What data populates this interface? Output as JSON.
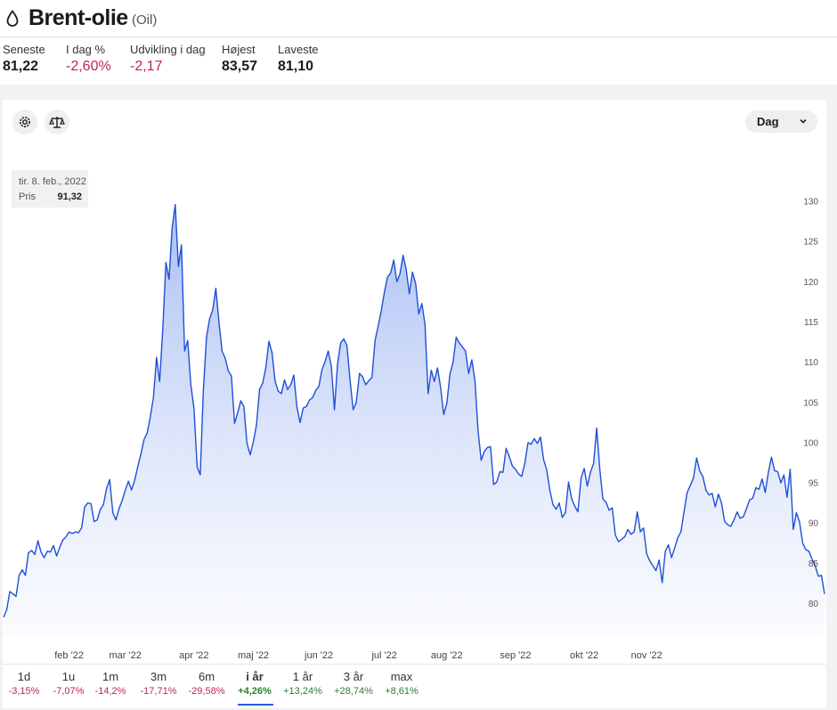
{
  "header": {
    "title": "Brent-olie",
    "subtitle": "(Oil)"
  },
  "stats": [
    {
      "label": "Seneste",
      "value": "81,22",
      "tone": "plain"
    },
    {
      "label": "I dag %",
      "value": "-2,60%",
      "tone": "neg"
    },
    {
      "label": "Udvikling i dag",
      "value": "-2,17",
      "tone": "neg"
    },
    {
      "label": "Højest",
      "value": "83,57",
      "tone": "plain"
    },
    {
      "label": "Laveste",
      "value": "81,10",
      "tone": "plain"
    }
  ],
  "controls": {
    "period": "Dag",
    "icons": [
      "settings-icon",
      "compare-icon"
    ]
  },
  "tooltip": {
    "date": "tir. 8. feb., 2022",
    "label": "Pris",
    "value": "91,32"
  },
  "colors": {
    "line": "#1f4fd8",
    "negative": "#c0225b",
    "positive": "#2e7d32"
  },
  "ranges": [
    {
      "label": "1d",
      "change": "-3,15%",
      "tone": "neg"
    },
    {
      "label": "1u",
      "change": "-7,07%",
      "tone": "neg"
    },
    {
      "label": "1m",
      "change": "-14,2%",
      "tone": "neg"
    },
    {
      "label": "3m",
      "change": "-17,71%",
      "tone": "neg"
    },
    {
      "label": "6m",
      "change": "-29,58%",
      "tone": "neg"
    },
    {
      "label": "i år",
      "change": "+4,26%",
      "tone": "pos",
      "active": true
    },
    {
      "label": "1 år",
      "change": "+13,24%",
      "tone": "pos"
    },
    {
      "label": "3 år",
      "change": "+28,74%",
      "tone": "pos"
    },
    {
      "label": "max",
      "change": "+8,61%",
      "tone": "pos"
    }
  ],
  "chart_data": {
    "type": "area",
    "title": "",
    "xlabel": "",
    "ylabel": "",
    "ylim": [
      76,
      131
    ],
    "yticks": [
      80,
      85,
      90,
      95,
      100,
      105,
      110,
      115,
      120,
      125,
      130
    ],
    "xticks": [
      "feb '22",
      "mar '22",
      "apr '22",
      "maj '22",
      "jun '22",
      "jul '22",
      "aug '22",
      "sep '22",
      "okt '22",
      "nov '22"
    ],
    "grid": false,
    "legend": "none",
    "series": [
      {
        "values": [
          78.3,
          79.2,
          81.5,
          81.2,
          80.9,
          83.5,
          84.2,
          83.5,
          86.3,
          86.6,
          86.1,
          87.8,
          86.4,
          85.7,
          86.5,
          86.4,
          87.2,
          85.9,
          87.0,
          87.9,
          88.3,
          88.9,
          88.7,
          88.9,
          88.8,
          89.4,
          92.0,
          92.5,
          92.4,
          90.2,
          90.4,
          91.7,
          92.3,
          94.3,
          95.4,
          91.3,
          90.4,
          91.8,
          92.8,
          94.1,
          95.2,
          94.1,
          95.3,
          97.0,
          98.6,
          100.4,
          101.2,
          103.2,
          105.6,
          110.6,
          107.6,
          114.1,
          122.4,
          120.3,
          126.7,
          129.6,
          121.9,
          124.6,
          111.4,
          112.7,
          107.2,
          104.3,
          97.0,
          96.0,
          106.6,
          113.1,
          115.4,
          116.5,
          119.2,
          115.0,
          111.4,
          110.5,
          108.9,
          108.3,
          102.4,
          103.7,
          105.2,
          104.5,
          99.9,
          98.5,
          100.1,
          102.2,
          106.6,
          107.4,
          109.3,
          112.6,
          111.2,
          107.6,
          106.4,
          106.1,
          107.8,
          106.6,
          107.2,
          108.4,
          104.4,
          102.5,
          104.3,
          104.5,
          105.3,
          105.6,
          106.5,
          107.0,
          109.1,
          110.1,
          111.4,
          109.5,
          104.1,
          109.8,
          112.4,
          112.9,
          112.1,
          107.8,
          104.1,
          105.0,
          108.6,
          108.2,
          107.2,
          107.7,
          108.1,
          112.7,
          114.5,
          116.4,
          118.7,
          120.6,
          121.1,
          122.7,
          120.0,
          121.0,
          123.3,
          121.5,
          118.5,
          121.2,
          119.8,
          116.0,
          117.3,
          114.7,
          106.1,
          109.0,
          107.6,
          109.3,
          106.9,
          103.5,
          104.9,
          108.5,
          110.0,
          113.1,
          112.4,
          111.9,
          111.4,
          108.6,
          110.3,
          107.7,
          101.5,
          97.8,
          98.9,
          99.4,
          99.5,
          94.8,
          95.1,
          96.4,
          96.3,
          99.3,
          98.3,
          97.1,
          96.7,
          96.1,
          95.8,
          97.5,
          100.0,
          99.8,
          100.5,
          99.9,
          100.7,
          97.9,
          96.6,
          94.1,
          92.3,
          91.7,
          92.5,
          90.7,
          91.3,
          95.1,
          93.0,
          92.1,
          91.4,
          95.6,
          96.8,
          94.6,
          96.3,
          97.4,
          101.8,
          96.7,
          93.0,
          92.6,
          91.6,
          91.9,
          88.5,
          87.7,
          88.0,
          88.3,
          89.2,
          88.6,
          88.9,
          91.4,
          88.9,
          89.4,
          86.2,
          85.3,
          84.7,
          84.1,
          85.4,
          82.6,
          86.5,
          87.3,
          85.7,
          86.9,
          88.2,
          88.9,
          91.4,
          93.8,
          94.7,
          95.6,
          98.1,
          96.5,
          95.8,
          94.1,
          93.5,
          93.7,
          92.0,
          93.6,
          92.5,
          90.2,
          89.8,
          89.6,
          90.4,
          91.4,
          90.6,
          90.8,
          91.8,
          92.9,
          93.1,
          94.4,
          94.2,
          95.5,
          93.8,
          96.3,
          98.2,
          96.5,
          96.4,
          95.0,
          96.0,
          93.2,
          96.7,
          89.2,
          91.3,
          90.1,
          87.5,
          86.7,
          86.5,
          85.5,
          84.7,
          83.4,
          83.5,
          81.2
        ]
      }
    ]
  }
}
